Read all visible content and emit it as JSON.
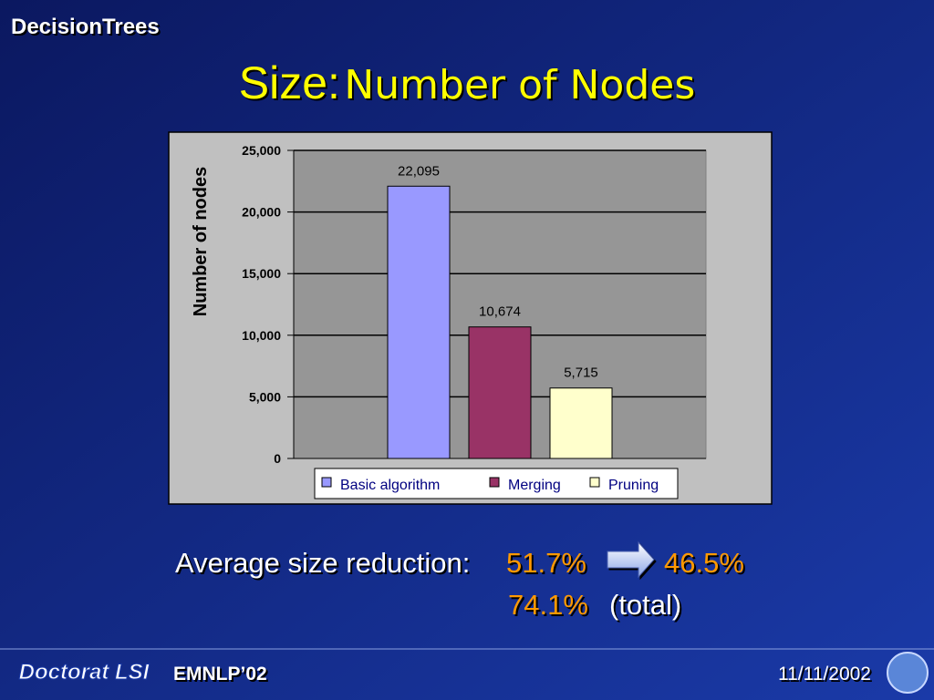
{
  "slide": {
    "header": "DecisionTrees",
    "title_main": "Size:",
    "title_sub": "Number of Nodes",
    "summary_label": "Average size reduction:",
    "summary_from": "51.7%",
    "summary_to": "46.5%",
    "summary_total": "74.1%",
    "summary_total_note": "(total)",
    "footer_logo": "Doctorat LSI",
    "footer_event": "EMNLP’02",
    "footer_date": "11/11/2002"
  },
  "chart_data": {
    "type": "bar",
    "ylabel": "Number of nodes",
    "categories": [
      null
    ],
    "series": [
      {
        "name": "Basic algorithm",
        "color": "#9999ff",
        "values": [
          22095
        ],
        "value_labels": [
          "22,095"
        ]
      },
      {
        "name": "Merging",
        "color": "#993366",
        "values": [
          10674
        ],
        "value_labels": [
          "10,674"
        ]
      },
      {
        "name": "Pruning",
        "color": "#ffffcc",
        "values": [
          5715
        ],
        "value_labels": [
          "5,715"
        ]
      }
    ],
    "ylim": [
      0,
      25000
    ],
    "yticks": [
      0,
      {
        "value": 5000,
        "label": "5,000"
      },
      {
        "value": 10000,
        "label": "10,000"
      },
      {
        "value": 15000,
        "label": "15,000"
      },
      {
        "value": 20000,
        "label": "20,000"
      },
      {
        "value": 25000,
        "label": "25,000"
      }
    ],
    "grid": true,
    "legend": "bottom"
  }
}
